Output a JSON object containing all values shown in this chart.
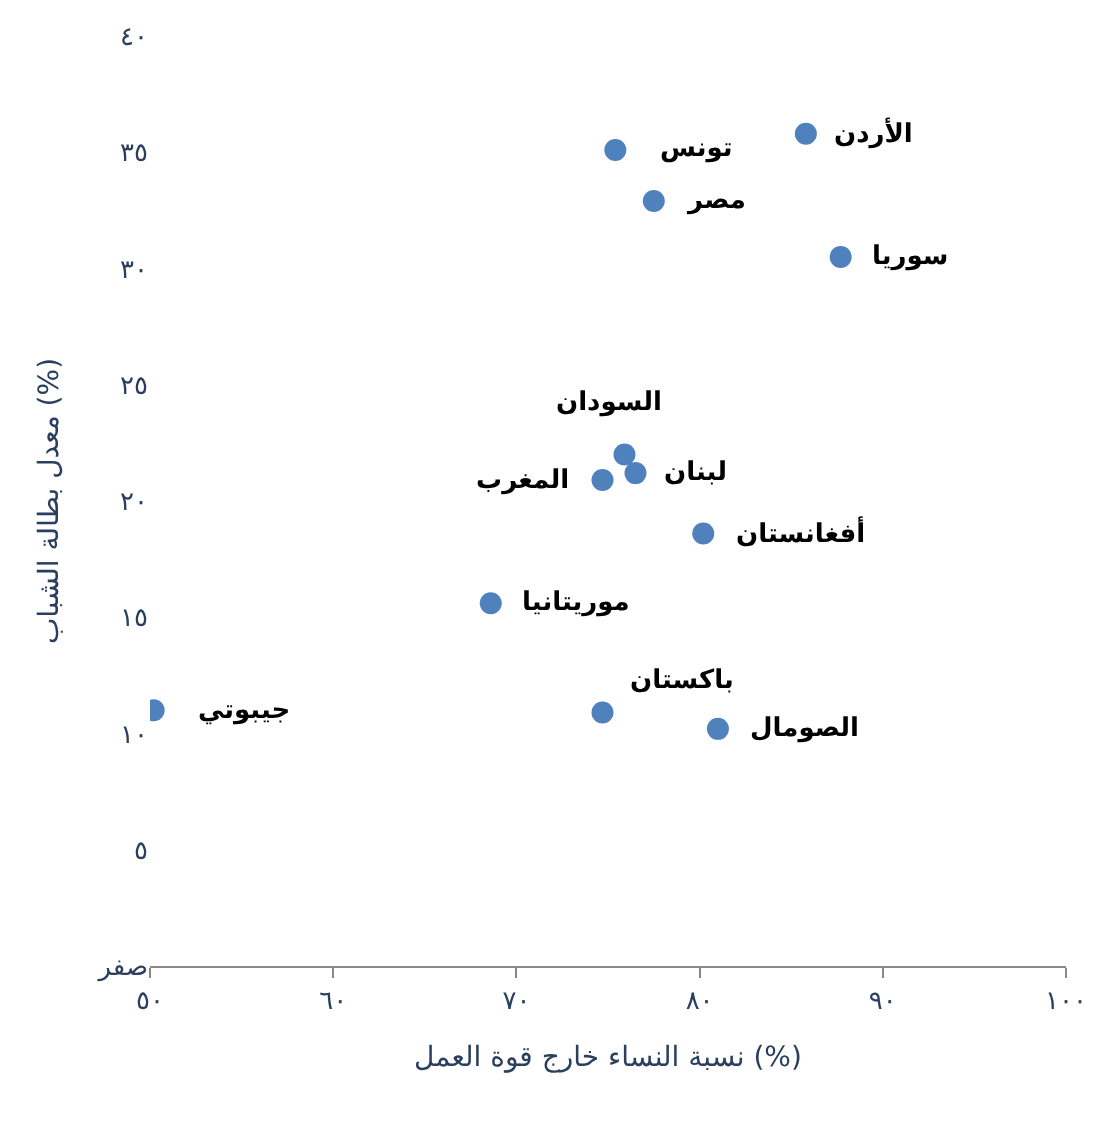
{
  "chart_data": {
    "type": "scatter",
    "xlabel": "نسبة النساء خارج قوة العمل (%)",
    "ylabel": "معدل بطالة الشباب (%)",
    "x": [
      85.8,
      75.4,
      77.5,
      87.7,
      75.9,
      76.5,
      74.7,
      80.2,
      68.6,
      50.2,
      74.7,
      81.0
    ],
    "series": [
      {
        "color": "#4f81bd",
        "values": [
          35.8,
          35.1,
          32.9,
          30.5,
          22.0,
          21.2,
          20.9,
          18.6,
          15.6,
          11.0,
          10.9,
          10.2
        ]
      }
    ],
    "marker": "circle",
    "xlim": [
      50,
      100
    ],
    "xticks": [
      {
        "value": 50,
        "label": "٥٠"
      },
      {
        "value": 60,
        "label": "٦٠"
      },
      {
        "value": 70,
        "label": "٧٠"
      },
      {
        "value": 80,
        "label": "٨٠"
      },
      {
        "value": 90,
        "label": "٩٠"
      },
      {
        "value": 100,
        "label": "١٠٠"
      }
    ],
    "ylim": [
      0,
      40
    ],
    "yticks": [
      {
        "value": 0,
        "label": "صفر"
      },
      {
        "value": 5,
        "label": "٥"
      },
      {
        "value": 10,
        "label": "١٠"
      },
      {
        "value": 15,
        "label": "١٥"
      },
      {
        "value": 20,
        "label": "٢٠"
      },
      {
        "value": 25,
        "label": "٢٥"
      },
      {
        "value": 30,
        "label": "٣٠"
      },
      {
        "value": 35,
        "label": "٣٥"
      },
      {
        "value": 40,
        "label": "٤٠"
      }
    ],
    "annotations": [
      {
        "text": "الأردن",
        "x": 85.8,
        "y": 35.8
      },
      {
        "text": "تونس",
        "x": 75.4,
        "y": 35.1
      },
      {
        "text": "مصر",
        "x": 77.5,
        "y": 32.9
      },
      {
        "text": "سوريا",
        "x": 87.7,
        "y": 30.5
      },
      {
        "text": "السودان",
        "x": 75.9,
        "y": 22.0
      },
      {
        "text": "لبنان",
        "x": 76.5,
        "y": 21.2
      },
      {
        "text": "المغرب",
        "x": 74.7,
        "y": 20.9
      },
      {
        "text": "أفغانستان",
        "x": 80.2,
        "y": 18.6
      },
      {
        "text": "موريتانيا",
        "x": 68.6,
        "y": 15.6
      },
      {
        "text": "جيبوتي",
        "x": 50.2,
        "y": 11.0
      },
      {
        "text": "باكستان",
        "x": 74.7,
        "y": 10.9
      },
      {
        "text": "الصومال",
        "x": 81.0,
        "y": 10.2
      }
    ]
  }
}
